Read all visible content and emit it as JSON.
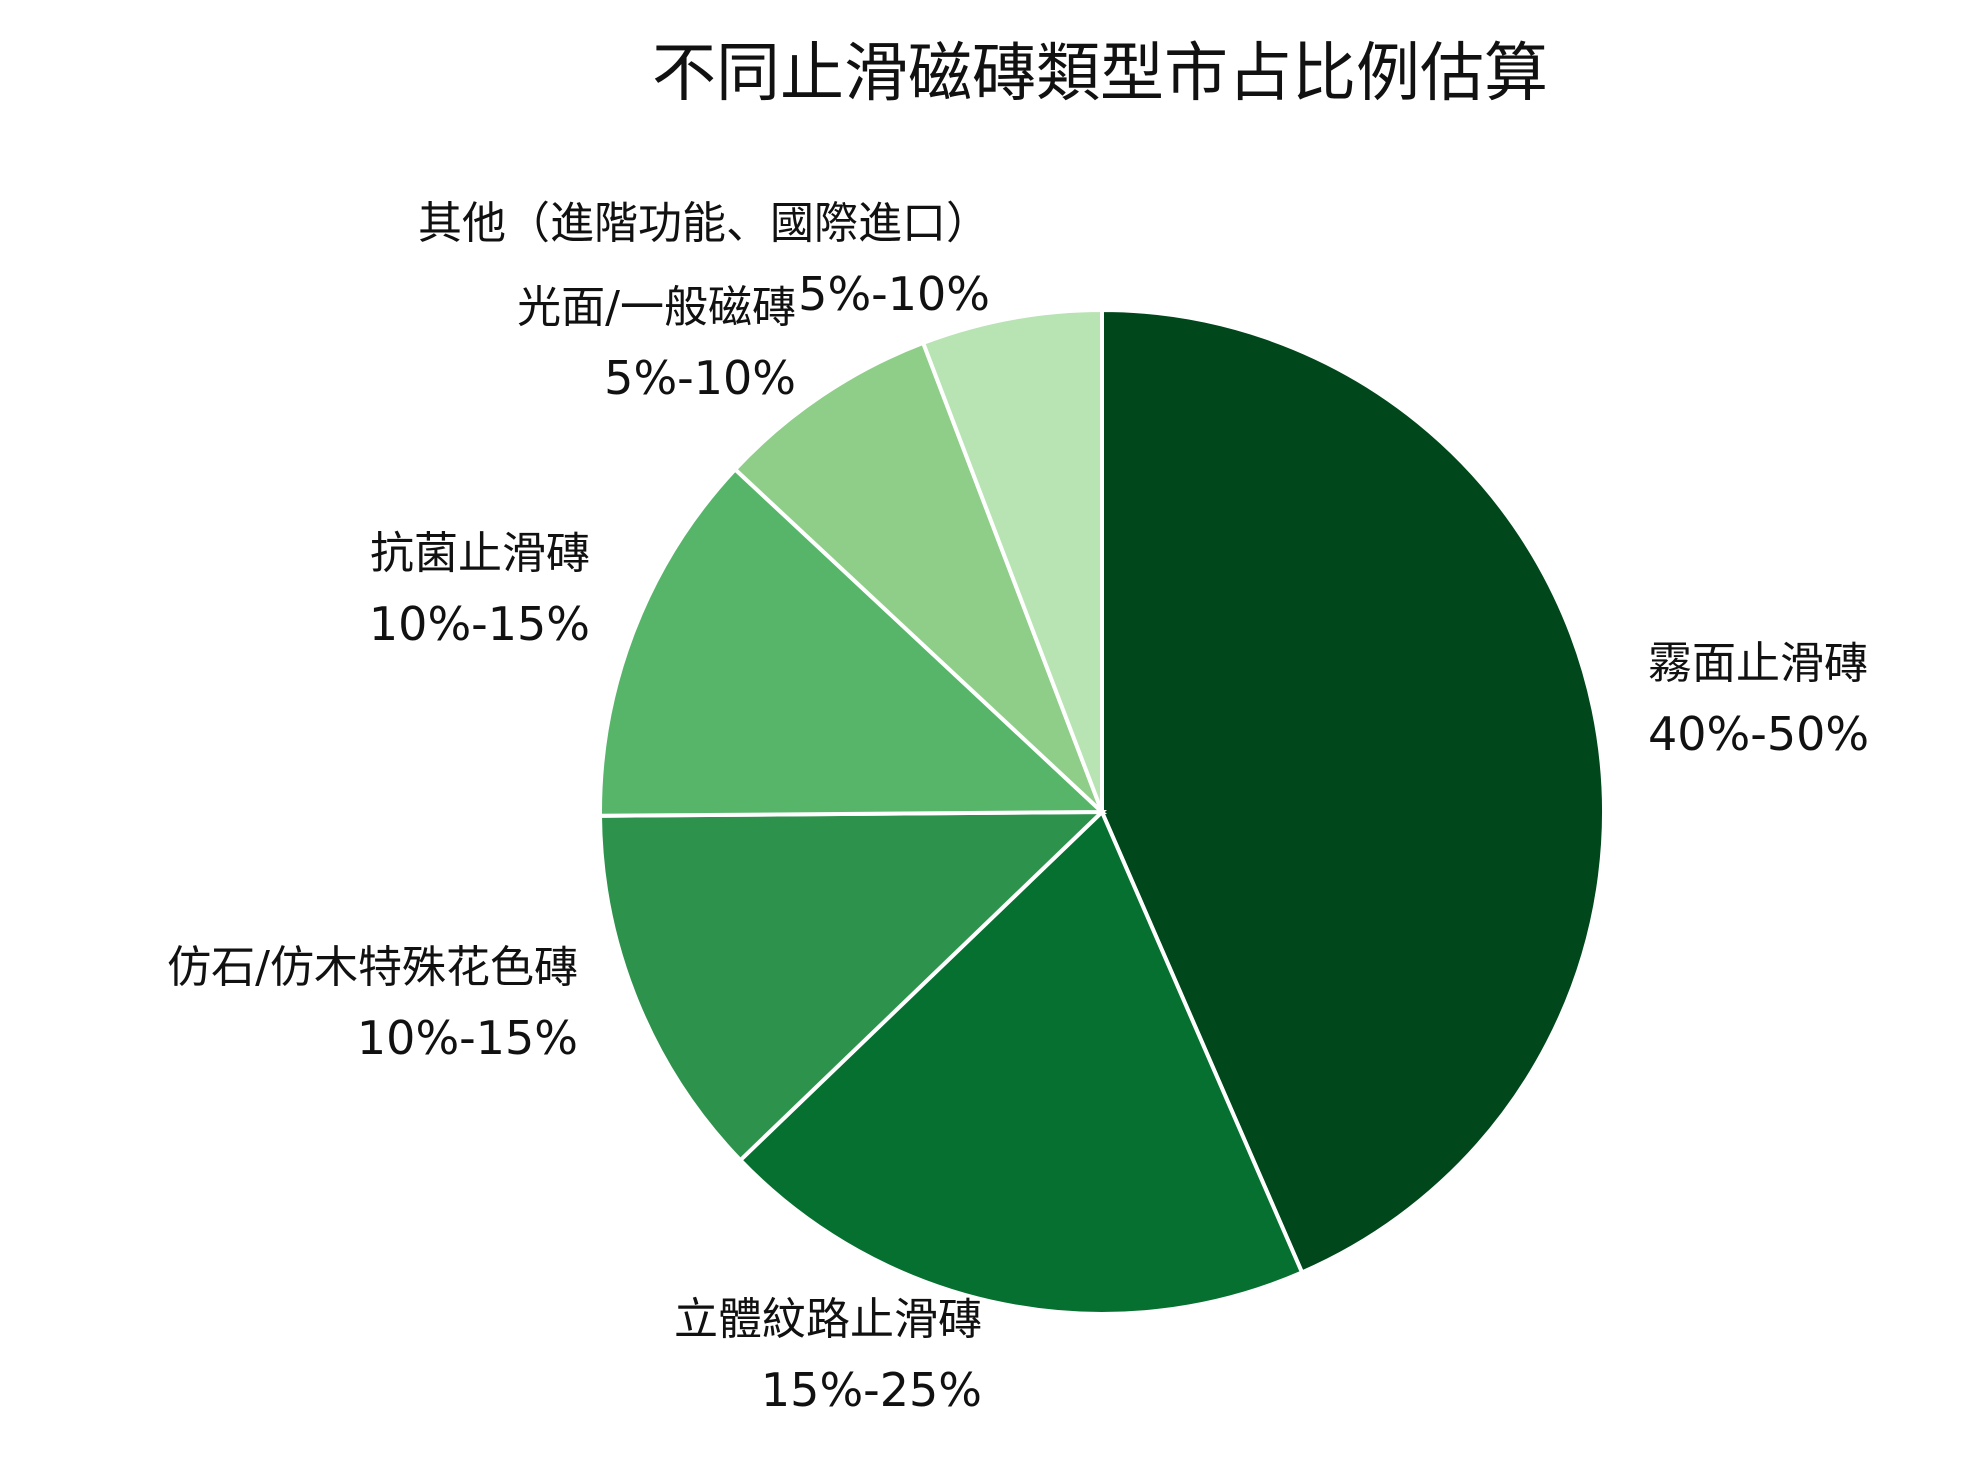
{
  "chart_data": {
    "type": "pie",
    "title": "不同止滑磁磚類型市占比例估算",
    "slices": [
      {
        "label": "霧面止滑磚",
        "value_text": "40%-50%",
        "value": 45,
        "color": "#00471b"
      },
      {
        "label": "立體紋路止滑磚",
        "value_text": "15%-25%",
        "value": 20,
        "color": "#067030"
      },
      {
        "label": "仿石/仿木特殊花色磚",
        "value_text": "10%-15%",
        "value": 12.5,
        "color": "#2d924b"
      },
      {
        "label": "抗菌止滑磚",
        "value_text": "10%-15%",
        "value": 12.5,
        "color": "#57b56a"
      },
      {
        "label": "光面/一般磁磚",
        "value_text": "5%-10%",
        "value": 7.5,
        "color": "#8ece88"
      },
      {
        "label": "其他（進階功能、國際進口）",
        "value_text": "5%-10%",
        "value": 6,
        "color": "#b8e3b3"
      }
    ],
    "start": "12 o'clock",
    "direction": "clockwise",
    "legend": "none"
  }
}
